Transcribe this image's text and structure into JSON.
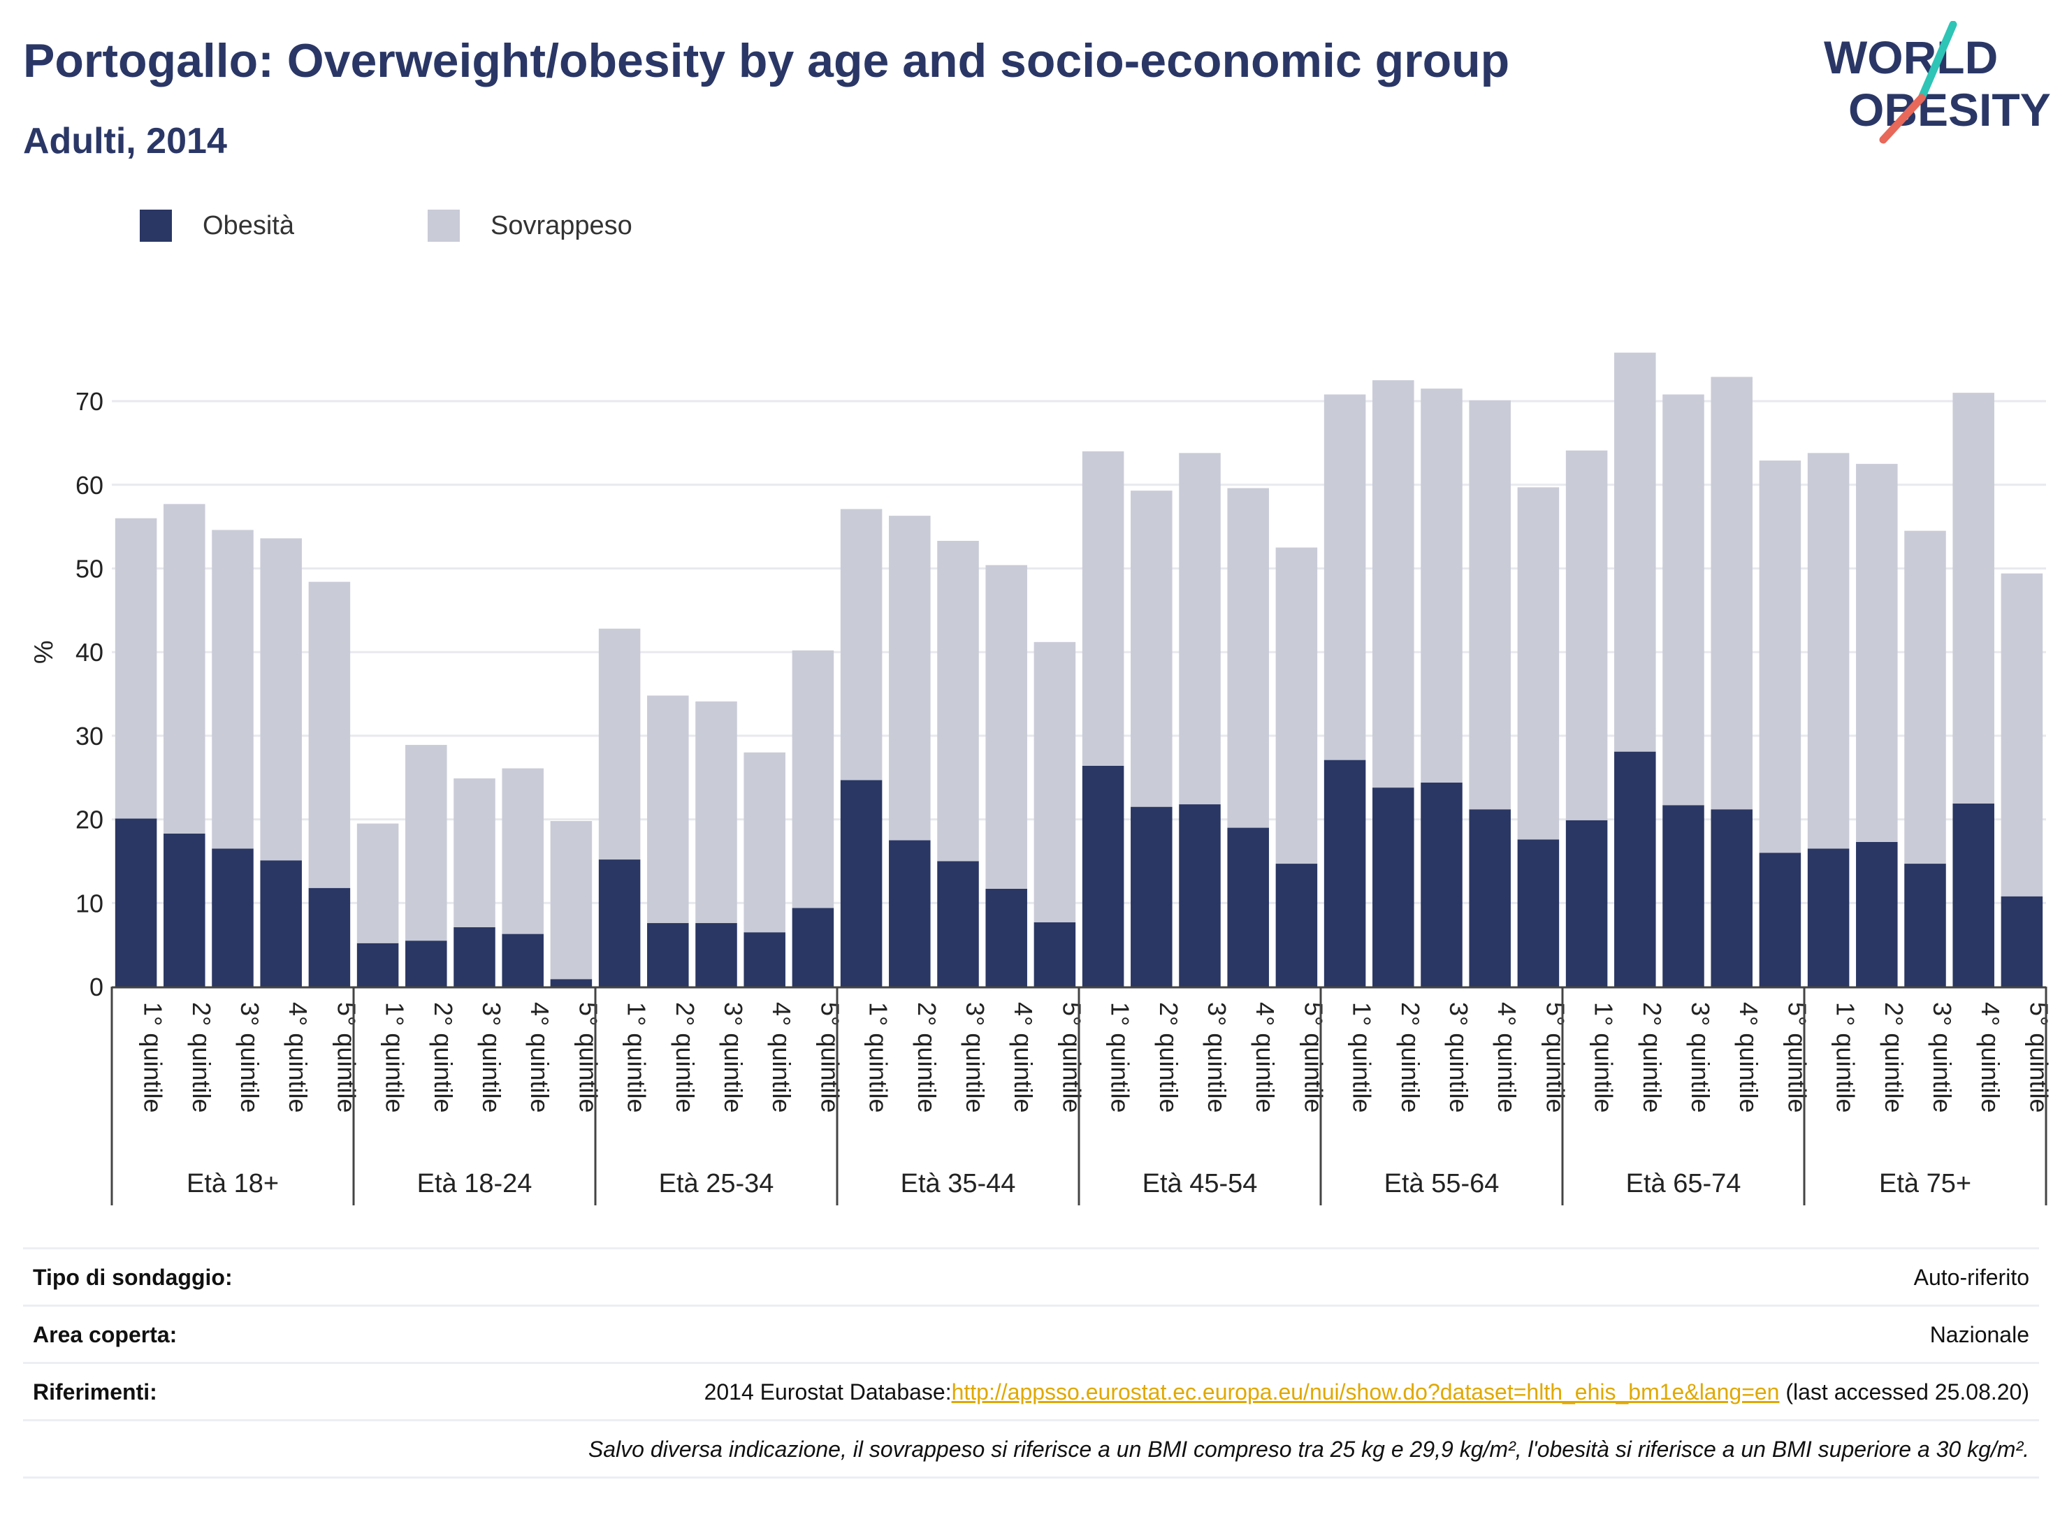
{
  "header": {
    "title": "Portogallo: Overweight/obesity by age and socio-economic group",
    "subtitle": "Adulti, 2014",
    "logo_line1": "WORLD",
    "logo_line2": "OBESITY"
  },
  "colors": {
    "obesity": "#2a3764",
    "overweight": "#c9cbd7",
    "title": "#2a3766",
    "link": "#e0a800",
    "logo_teal": "#2ec4b6",
    "logo_red": "#e8685a"
  },
  "chart_data": {
    "type": "bar",
    "stacked": true,
    "title": "Portogallo: Overweight/obesity by age and socio-economic group",
    "subtitle": "Adulti, 2014",
    "ylabel": "%",
    "ylim": [
      0,
      79
    ],
    "yticks": [
      "0",
      "10",
      "20",
      "30",
      "40",
      "50",
      "60",
      "70"
    ],
    "grid": true,
    "legend_position": "top-left",
    "categories": [
      "1° quintile",
      "2° quintile",
      "3° quintile",
      "4° quintile",
      "5° quintile"
    ],
    "groups": [
      "Età 18+",
      "Età 18-24",
      "Età 25-34",
      "Età 35-44",
      "Età 45-54",
      "Età 55-64",
      "Età 65-74",
      "Età 75+"
    ],
    "series": [
      {
        "name": "Obesità",
        "values": [
          [
            20.1,
            18.3,
            16.5,
            15.1,
            11.8
          ],
          [
            5.2,
            5.5,
            7.1,
            6.3,
            0.9
          ],
          [
            15.2,
            7.6,
            7.6,
            6.5,
            9.4
          ],
          [
            24.7,
            17.5,
            15.0,
            11.7,
            7.7
          ],
          [
            26.4,
            21.5,
            21.8,
            19.0,
            14.7
          ],
          [
            27.1,
            23.8,
            24.4,
            21.2,
            17.6
          ],
          [
            19.9,
            28.1,
            21.7,
            21.2,
            16.0
          ],
          [
            16.5,
            17.3,
            14.7,
            21.9,
            10.8
          ]
        ]
      },
      {
        "name": "Sovrappeso",
        "values": [
          [
            35.9,
            39.4,
            38.1,
            38.5,
            36.6
          ],
          [
            14.3,
            23.4,
            17.8,
            19.8,
            18.9
          ],
          [
            27.6,
            27.2,
            26.5,
            21.5,
            30.8
          ],
          [
            32.4,
            38.8,
            38.3,
            38.7,
            33.5
          ],
          [
            37.6,
            37.8,
            42.0,
            40.6,
            37.8
          ],
          [
            43.7,
            48.7,
            47.1,
            48.9,
            42.1
          ],
          [
            44.2,
            47.7,
            49.1,
            51.7,
            46.9
          ],
          [
            47.3,
            45.2,
            39.8,
            49.1,
            38.6
          ]
        ]
      }
    ]
  },
  "info": {
    "survey_type_label": "Tipo di sondaggio:",
    "survey_type_value": "Auto-riferito",
    "area_label": "Area coperta:",
    "area_value": "Nazionale",
    "refs_label": "Riferimenti:",
    "refs_prefix": "2014 Eurostat Database:",
    "refs_link": "http://appsso.eurostat.ec.europa.eu/nui/show.do?dataset=hlth_ehis_bm1e&lang=en",
    "refs_suffix": " (last accessed 25.08.20)",
    "note": "Salvo diversa indicazione, il sovrappeso si riferisce a un BMI compreso tra 25 kg e 29,9 kg/m², l'obesità si riferisce a un BMI superiore a 30 kg/m²."
  }
}
